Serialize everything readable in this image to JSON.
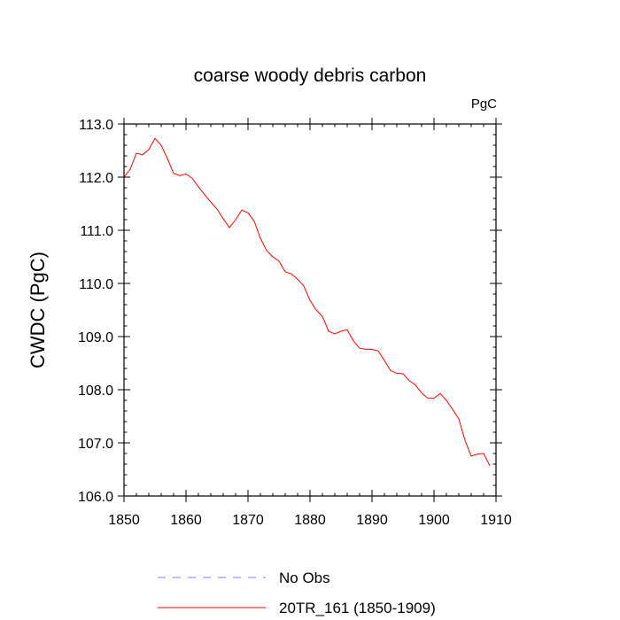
{
  "chart_data": {
    "type": "line",
    "title": "coarse woody debris carbon",
    "units_label": "PgC",
    "ylabel": "CWDC  (PgC)",
    "xlabel": "",
    "xlim": [
      1850,
      1910
    ],
    "ylim": [
      106.0,
      113.0
    ],
    "x_ticks": [
      1850,
      1860,
      1870,
      1880,
      1890,
      1900,
      1910
    ],
    "y_ticks": [
      "106.0",
      "107.0",
      "108.0",
      "109.0",
      "110.0",
      "111.0",
      "112.0",
      "113.0"
    ],
    "grid": false,
    "legend_position": "bottom",
    "series": [
      {
        "name": "No Obs",
        "color": "#8080ff",
        "style": "dashed",
        "x": [],
        "y": []
      },
      {
        "name": "20TR_161 (1850-1909)",
        "color": "#ff0000",
        "style": "solid",
        "x": [
          1850,
          1851,
          1852,
          1853,
          1854,
          1855,
          1856,
          1857,
          1858,
          1859,
          1860,
          1861,
          1862,
          1863,
          1864,
          1865,
          1866,
          1867,
          1868,
          1869,
          1870,
          1871,
          1872,
          1873,
          1874,
          1875,
          1876,
          1877,
          1878,
          1879,
          1880,
          1881,
          1882,
          1883,
          1884,
          1885,
          1886,
          1887,
          1888,
          1889,
          1890,
          1891,
          1892,
          1893,
          1894,
          1895,
          1896,
          1897,
          1898,
          1899,
          1900,
          1901,
          1902,
          1903,
          1904,
          1905,
          1906,
          1907,
          1908,
          1909
        ],
        "y": [
          112.0,
          112.15,
          112.45,
          112.42,
          112.52,
          112.73,
          112.6,
          112.35,
          112.07,
          112.03,
          112.06,
          111.98,
          111.82,
          111.67,
          111.53,
          111.4,
          111.22,
          111.05,
          111.2,
          111.38,
          111.33,
          111.17,
          110.85,
          110.62,
          110.5,
          110.42,
          110.22,
          110.18,
          110.08,
          109.95,
          109.68,
          109.5,
          109.38,
          109.1,
          109.05,
          109.1,
          109.13,
          108.92,
          108.78,
          108.76,
          108.76,
          108.73,
          108.55,
          108.36,
          108.31,
          108.3,
          108.17,
          108.09,
          107.94,
          107.84,
          107.84,
          107.93,
          107.8,
          107.63,
          107.45,
          107.05,
          106.75,
          106.79,
          106.8,
          106.57
        ]
      }
    ]
  }
}
